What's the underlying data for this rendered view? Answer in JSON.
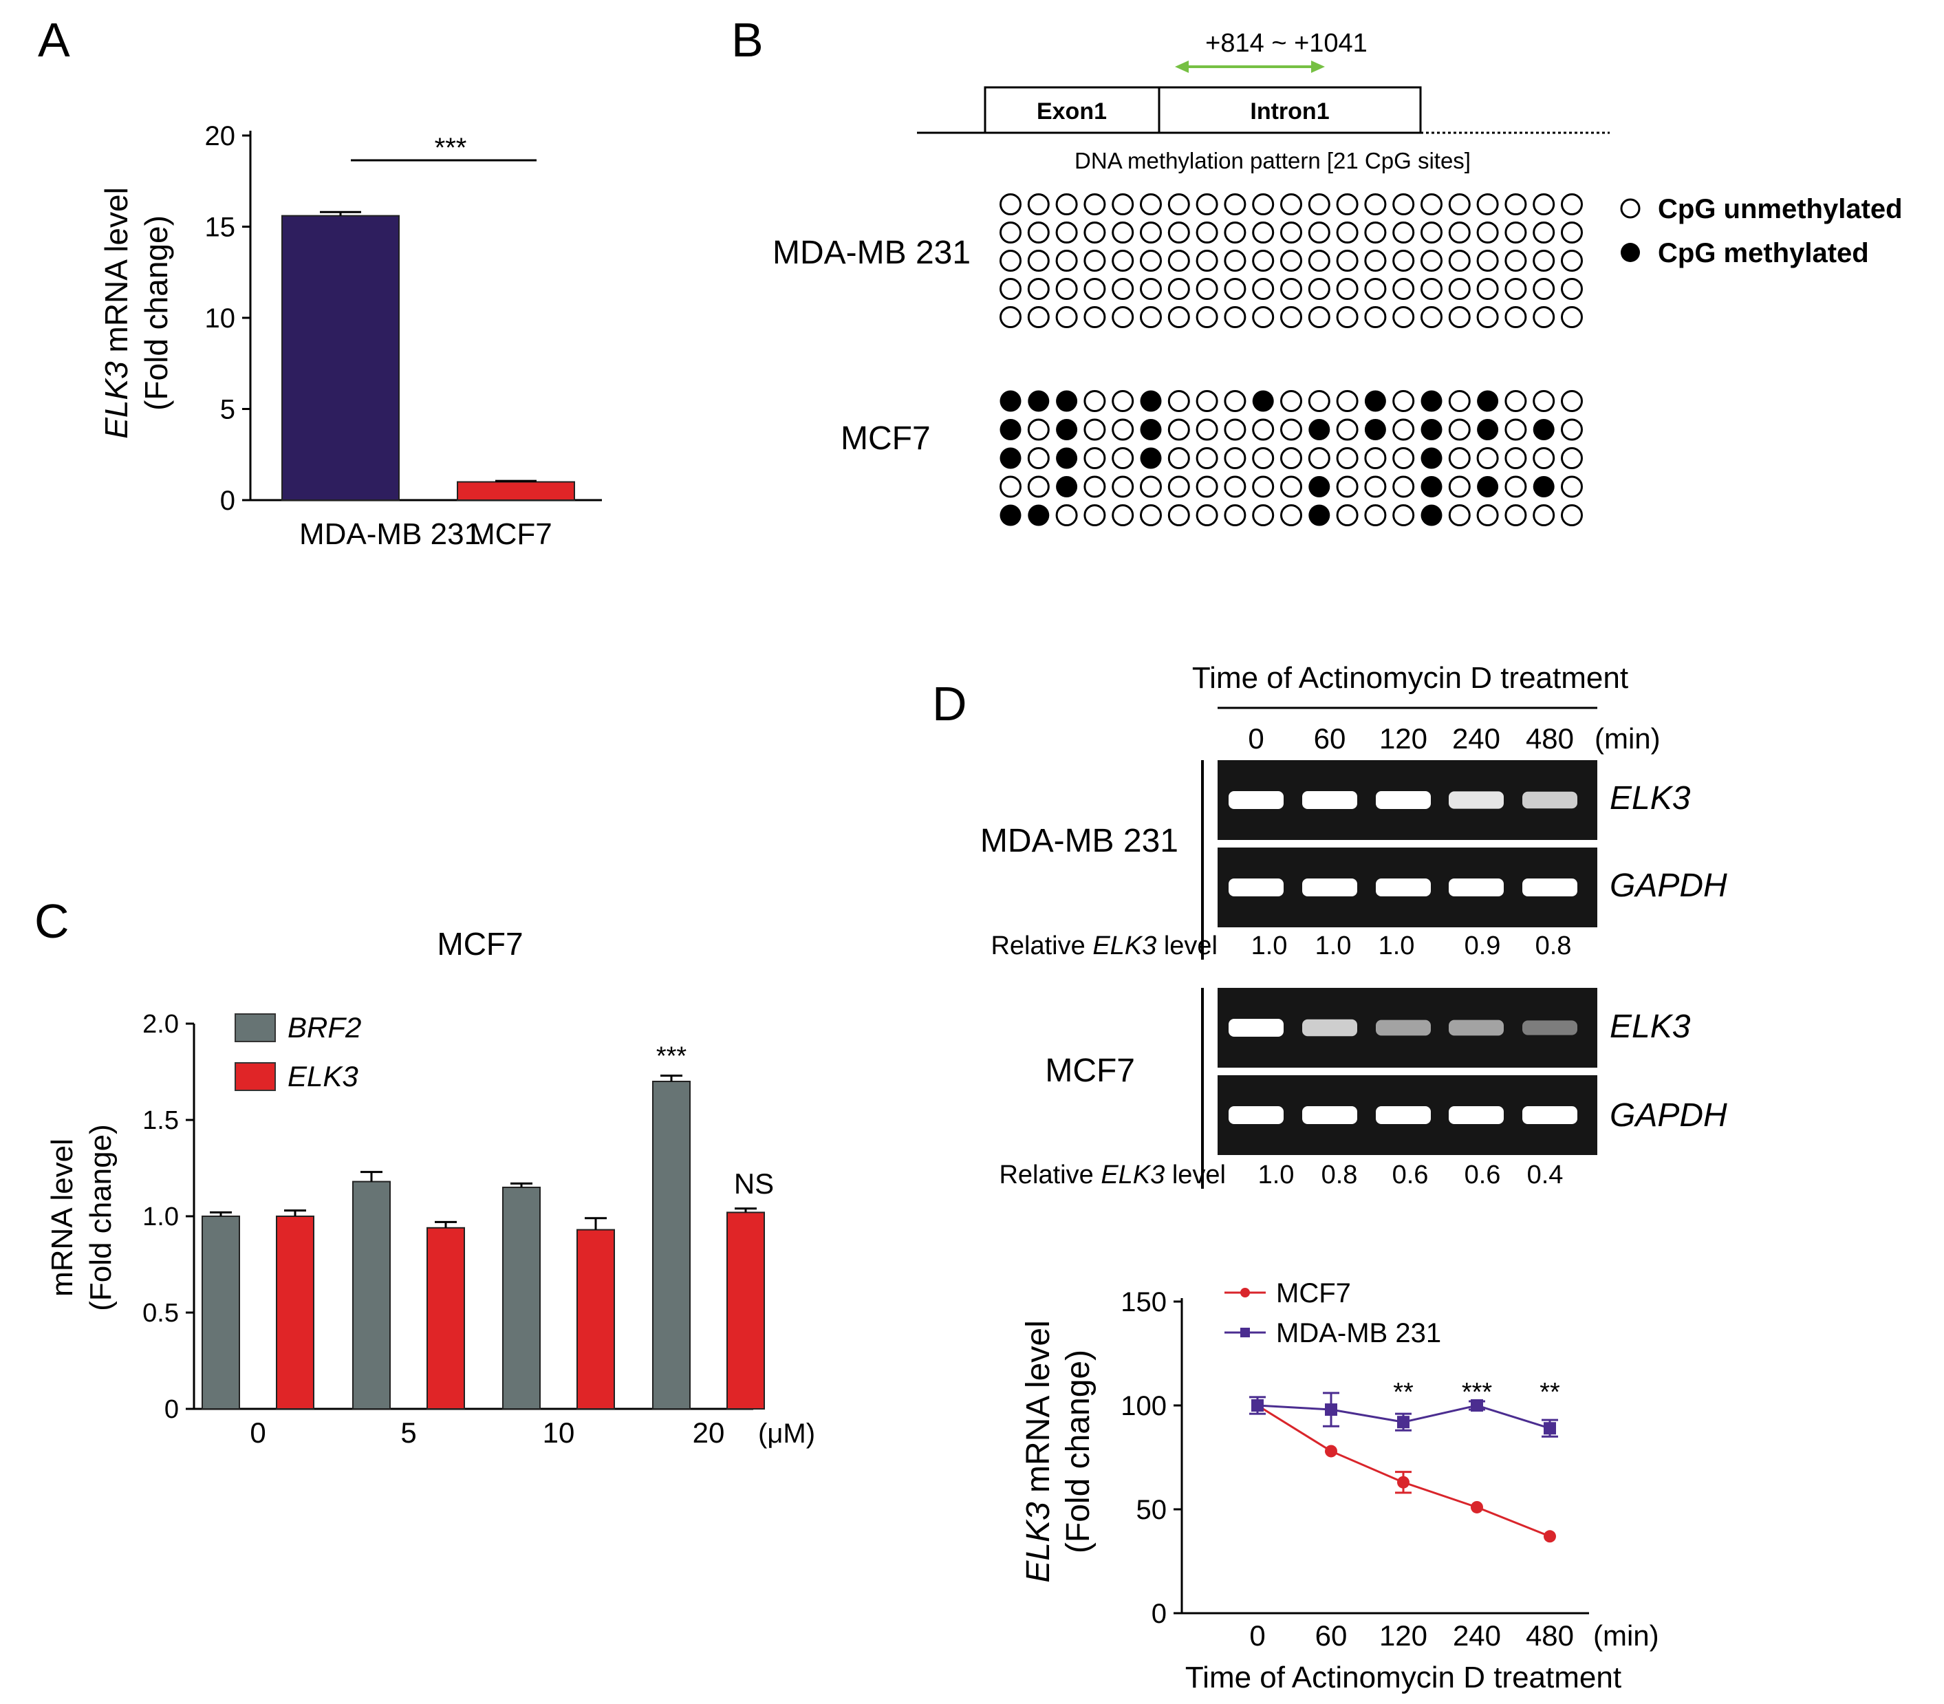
{
  "colors": {
    "purple_bar": "#2E1E5E",
    "red": "#E02527",
    "gray_bar": "#677474",
    "green_arrow": "#76C043",
    "line_red": "#D9252B",
    "line_purple": "#4B2D90",
    "gel_bg": "#161616"
  },
  "panel_labels": {
    "a": "A",
    "b": "B",
    "c": "C",
    "d": "D"
  },
  "panel_b": {
    "region_label": "+814 ~ +1041",
    "exon_label": "Exon1",
    "intron_label": "Intron1",
    "pattern_title": "DNA methylation pattern [21 CpG sites]",
    "legend_unmethylated": "CpG unmethylated",
    "legend_methylated": "CpG methylated",
    "rows_mda_label": "MDA-MB 231",
    "rows_mcf7_label": "MCF7",
    "mda_rows": [
      "000000000000000000000",
      "000000000000000000000",
      "000000000000000000000",
      "000000000000000000000",
      "000000000000000000000"
    ],
    "mcf7_rows": [
      "111001000100010101000",
      "101001000001010101010",
      "101001000000000100000",
      "001000000001000101010",
      "110000000001000100000"
    ]
  },
  "panel_d_gel": {
    "header": "Time of Actinomycin D treatment",
    "times": [
      "0",
      "60",
      "120",
      "240",
      "480"
    ],
    "unit": "(min)",
    "mda_label": "MDA-MB 231",
    "mcf7_label": "MCF7",
    "band_elk3": "ELK3",
    "band_gapdh": "GAPDH",
    "relative_prefix": "Relative ",
    "relative_gene": "ELK3",
    "relative_suffix": " level",
    "mda_relative": [
      "1.0",
      "1.0",
      "1.0",
      "0.9",
      "0.8"
    ],
    "mcf7_relative": [
      "1.0",
      "0.8",
      "0.6",
      "0.6",
      "0.4"
    ],
    "mda_elk3_intensity": [
      1.0,
      1.0,
      1.0,
      0.9,
      0.8
    ],
    "mcf7_elk3_intensity": [
      1.0,
      0.8,
      0.6,
      0.6,
      0.4
    ]
  },
  "chart_data": [
    {
      "type": "bar",
      "panel": "A",
      "categories": [
        "MDA-MB 231",
        "MCF7"
      ],
      "values": [
        15.6,
        1.0
      ],
      "errors": [
        0.2,
        0.05
      ],
      "ylabel_gene": "ELK3",
      "ylabel_rest": " mRNA level",
      "ylabel_line2": "(Fold change)",
      "ylim": [
        0,
        20
      ],
      "yticks": [
        "0",
        "5",
        "10",
        "15",
        "20"
      ],
      "significance": "***"
    },
    {
      "type": "bar",
      "panel": "C",
      "title": "MCF7",
      "categories": [
        "0",
        "5",
        "10",
        "20"
      ],
      "unit": "(μM)",
      "series": [
        {
          "name": "BRF2",
          "values": [
            1.0,
            1.18,
            1.15,
            1.7
          ],
          "errors": [
            0.02,
            0.05,
            0.02,
            0.03
          ]
        },
        {
          "name": "ELK3",
          "values": [
            1.0,
            0.94,
            0.93,
            1.02
          ],
          "errors": [
            0.03,
            0.03,
            0.06,
            0.02
          ]
        }
      ],
      "ylabel": "mRNA level",
      "ylabel_line2": "(Fold change)",
      "ylim": [
        0,
        2.0
      ],
      "yticks": [
        "0",
        "0.5",
        "1.0",
        "1.5",
        "2.0"
      ],
      "annotations": [
        {
          "text": "***",
          "category": "20",
          "series": "BRF2"
        },
        {
          "text": "NS",
          "category": "20",
          "series": "ELK3"
        }
      ]
    },
    {
      "type": "line",
      "panel": "D",
      "x": [
        "0",
        "60",
        "120",
        "240",
        "480"
      ],
      "xunit": "(min)",
      "series": [
        {
          "name": "MCF7",
          "values": [
            100,
            78,
            63,
            51,
            37
          ],
          "errors": [
            0,
            0,
            5,
            0,
            0
          ],
          "marker": "circle"
        },
        {
          "name": "MDA-MB 231",
          "values": [
            100,
            98,
            92,
            100,
            89
          ],
          "errors": [
            4,
            8,
            4,
            2,
            4
          ],
          "marker": "square"
        }
      ],
      "xlabel": "Time of Actinomycin D treatment",
      "ylabel_gene": "ELK3",
      "ylabel_rest": " mRNA level",
      "ylabel_line2": "(Fold change)",
      "ylim": [
        0,
        150
      ],
      "yticks": [
        "0",
        "50",
        "100",
        "150"
      ],
      "significance": [
        {
          "x": "120",
          "text": "**"
        },
        {
          "x": "240",
          "text": "***"
        },
        {
          "x": "480",
          "text": "**"
        }
      ]
    }
  ]
}
